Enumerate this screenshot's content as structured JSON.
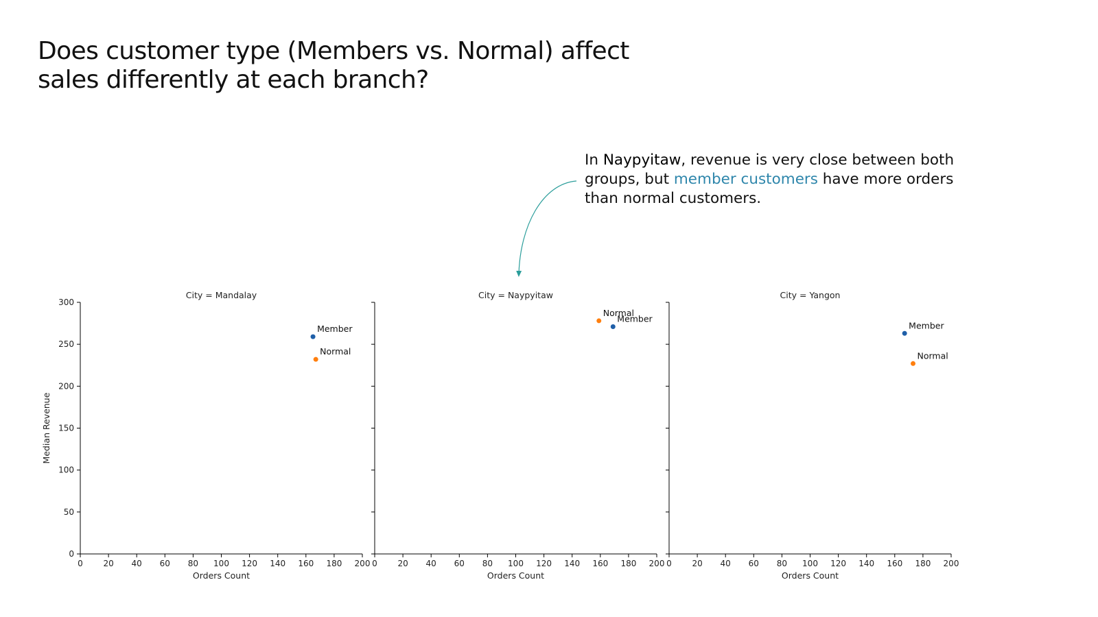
{
  "title": "Does customer type (Members vs. Normal) affect sales differently at each branch?",
  "annotation": {
    "prefix": "In ",
    "city": "Naypyitaw",
    "middle": ", revenue is very close between both groups, but ",
    "highlight": "member customers",
    "suffix": " have more orders than normal customers.",
    "highlight_color": "#2e86ab",
    "arrow_color": "#2a9d9a"
  },
  "colors": {
    "Member": "#1f5fa8",
    "Normal": "#ff7f0e"
  },
  "chart_data": [
    {
      "type": "scatter",
      "title": "City = Mandalay",
      "xlabel": "Orders Count",
      "ylabel": "Median Revenue",
      "xlim": [
        0,
        200
      ],
      "ylim": [
        0,
        300
      ],
      "xticks": [
        "0",
        "20",
        "40",
        "60",
        "80",
        "100",
        "120",
        "140",
        "160",
        "180",
        "200"
      ],
      "yticks": [
        "0",
        "50",
        "100",
        "150",
        "200",
        "250",
        "300"
      ],
      "points": [
        {
          "label": "Member",
          "x": 165,
          "y": 259
        },
        {
          "label": "Normal",
          "x": 167,
          "y": 232
        }
      ]
    },
    {
      "type": "scatter",
      "title": "City = Naypyitaw",
      "xlabel": "Orders Count",
      "ylabel": "",
      "xlim": [
        0,
        200
      ],
      "ylim": [
        0,
        300
      ],
      "xticks": [
        "0",
        "20",
        "40",
        "60",
        "80",
        "100",
        "120",
        "140",
        "160",
        "180",
        "200"
      ],
      "yticks": [],
      "points": [
        {
          "label": "Normal",
          "x": 159,
          "y": 278
        },
        {
          "label": "Member",
          "x": 169,
          "y": 271
        }
      ]
    },
    {
      "type": "scatter",
      "title": "City = Yangon",
      "xlabel": "Orders Count",
      "ylabel": "",
      "xlim": [
        0,
        200
      ],
      "ylim": [
        0,
        300
      ],
      "xticks": [
        "0",
        "20",
        "40",
        "60",
        "80",
        "100",
        "120",
        "140",
        "160",
        "180",
        "200"
      ],
      "yticks": [],
      "points": [
        {
          "label": "Member",
          "x": 167,
          "y": 263
        },
        {
          "label": "Normal",
          "x": 173,
          "y": 227
        }
      ]
    }
  ]
}
